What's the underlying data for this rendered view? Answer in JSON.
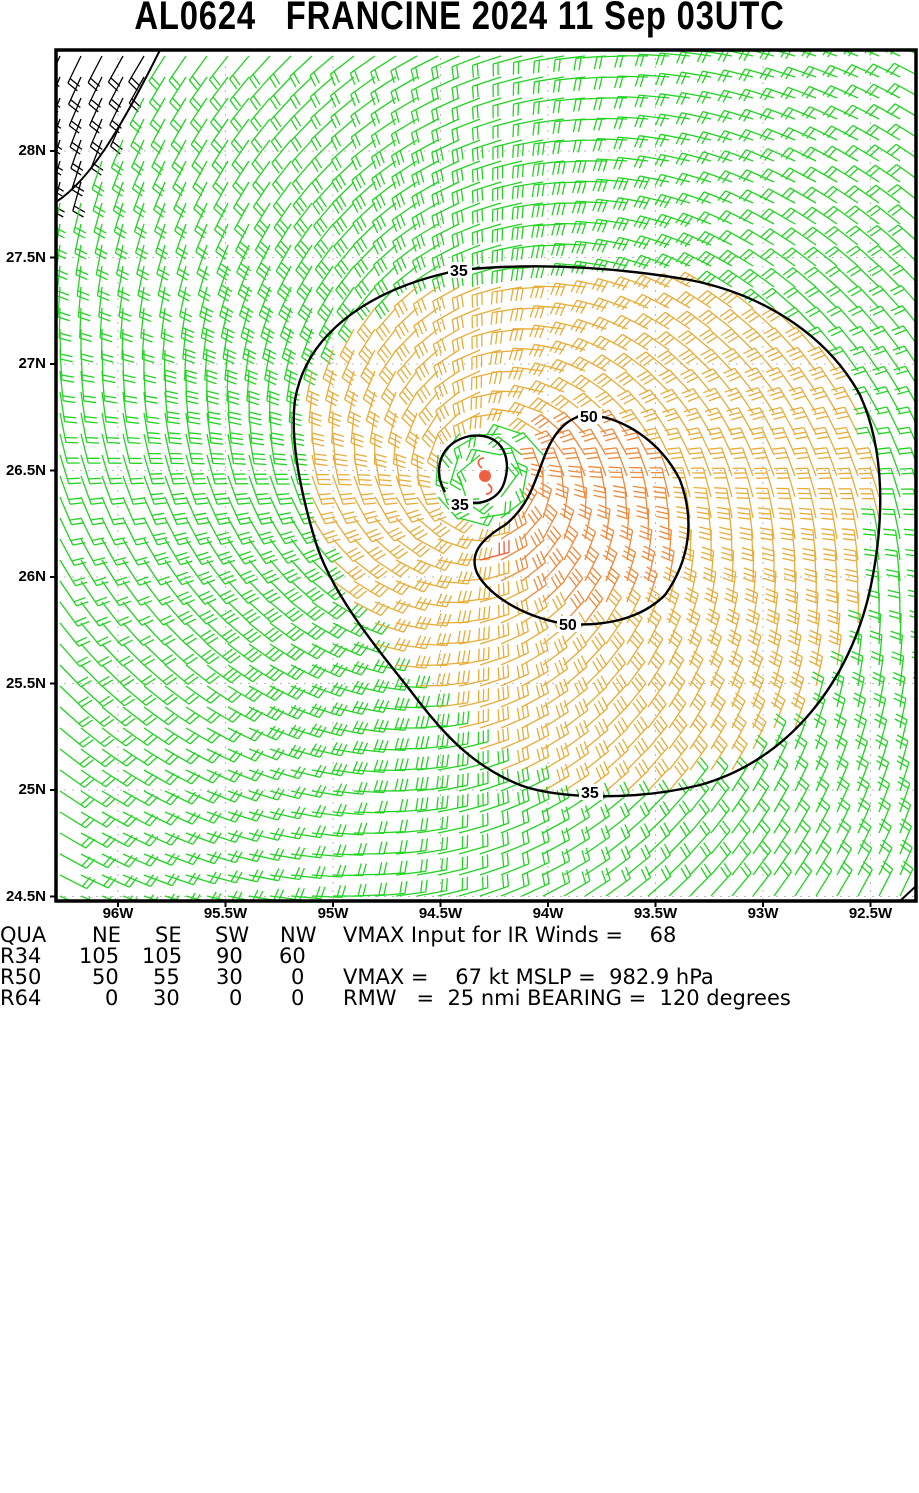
{
  "title": "AL0624   FRANCINE 2024 11 Sep 03UTC",
  "chart_data": {
    "type": "wind-barb-field",
    "title": "AL0624   FRANCINE 2024 11 Sep 03UTC",
    "storm_id": "AL0624",
    "storm_name": "FRANCINE",
    "date": "2024 11 Sep 03UTC",
    "xlabel": "",
    "ylabel": "",
    "xlim": [
      96.3,
      92.2
    ],
    "ylim": [
      24.48,
      28.47
    ],
    "x_ticks": [
      "96W",
      "95.5W",
      "95W",
      "94.5W",
      "94W",
      "93.5W",
      "93W",
      "92.5W"
    ],
    "x_tick_values": [
      -96.0,
      -95.5,
      -95.0,
      -94.5,
      -94.0,
      -93.5,
      -93.0,
      -92.5
    ],
    "y_ticks": [
      "28N",
      "27.5N",
      "27N",
      "26.5N",
      "26N",
      "25.5N",
      "25N",
      "24.5N"
    ],
    "y_tick_values": [
      28.0,
      27.5,
      27.0,
      26.5,
      26.0,
      25.5,
      25.0,
      24.5
    ],
    "grid": "dotted",
    "storm_center": {
      "lat": 26.47,
      "lon": -94.28
    },
    "contours": [
      {
        "level": 35,
        "label": "35",
        "description": "outer 34-kt wind radius contour, asymmetric, larger to the SE"
      },
      {
        "level": 35,
        "label": "35",
        "description": "small inner contour around the calm eye"
      },
      {
        "level": 50,
        "label": "50",
        "description": "50-kt contour east/southeast of center"
      }
    ],
    "barb_color_scale": [
      {
        "range": "< 34 kt",
        "color": "#22d322"
      },
      {
        "range": "34-49 kt",
        "color": "#e8ac38"
      },
      {
        "range": "50-63 kt",
        "color": "#f08838"
      },
      {
        "range": ">= 64 kt",
        "color": "#f05a3c"
      },
      {
        "range": "land / over land",
        "color": "#000000"
      }
    ],
    "wind_radii_table": {
      "columns": [
        "QUA",
        "NE",
        "SE",
        "SW",
        "NW"
      ],
      "rows": [
        {
          "label": "R34",
          "values": [
            105,
            105,
            90,
            60
          ]
        },
        {
          "label": "R50",
          "values": [
            50,
            55,
            30,
            0
          ]
        },
        {
          "label": "R64",
          "values": [
            0,
            30,
            0,
            0
          ]
        }
      ]
    },
    "vmax_input_ir_winds": 68,
    "vmax_kt": 67,
    "mslp_hpa": 982.9,
    "rmw_nmi": 25,
    "bearing_deg": 120
  },
  "footer": {
    "header_row": [
      "QUA",
      "NE",
      "SE",
      "SW",
      "NW"
    ],
    "rows": [
      {
        "label": "R34",
        "values": [
          "105",
          "105",
          "90",
          "60"
        ]
      },
      {
        "label": "R50",
        "values": [
          "50",
          "55",
          "30",
          "0"
        ]
      },
      {
        "label": "R64",
        "values": [
          "0",
          "30",
          "0",
          "0"
        ]
      }
    ],
    "line1": "VMAX Input for IR Winds =    68",
    "line3": "VMAX =    67 kt MSLP =  982.9 hPa",
    "line4": "RMW   =  25 nmi BEARING =  120 degrees"
  },
  "colors": {
    "weak": "#22d322",
    "ts": "#e8ac38",
    "strong": "#f08838",
    "hurricane": "#f05a3c",
    "land": "#000000",
    "frame": "#000000"
  }
}
